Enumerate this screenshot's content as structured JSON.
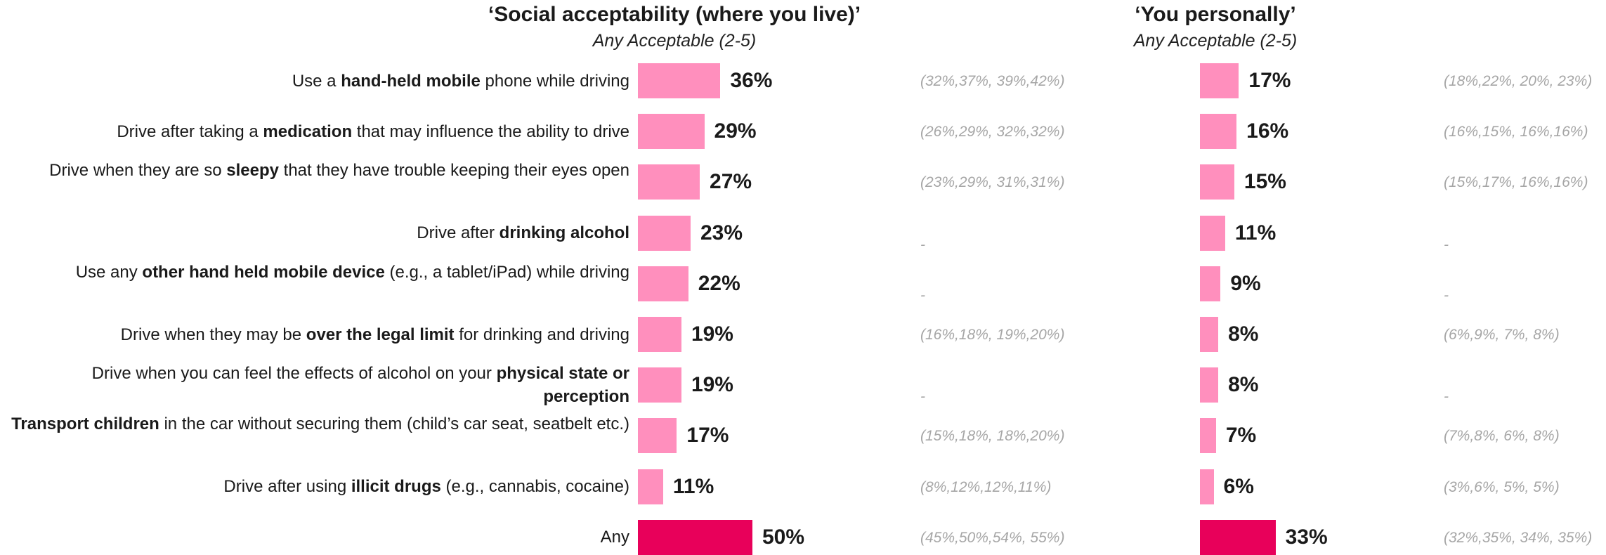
{
  "chart_data": [
    {
      "type": "bar",
      "orientation": "horizontal",
      "title": "‘Social acceptability (where you live)’",
      "subtitle": "Any Acceptable (2-5)",
      "categories": [
        "Use a hand-held mobile phone while driving",
        "Drive after taking a medication that may influence the ability to drive",
        "Drive when they are so sleepy that they have trouble keeping their eyes open",
        "Drive after drinking alcohol",
        "Use any other hand held mobile device (e.g., a tablet/iPad) while driving",
        "Drive when they may be over the legal limit for drinking and driving",
        "Drive when you can feel the effects of alcohol on your physical state or perception",
        "Transport children in the car without securing them (child’s car seat, seatbelt etc.)",
        "Drive after using illicit drugs (e.g., cannabis, cocaine)",
        "Any"
      ],
      "values": [
        36,
        29,
        27,
        23,
        22,
        19,
        19,
        17,
        11,
        50
      ],
      "value_labels": [
        "36%",
        "29%",
        "27%",
        "23%",
        "22%",
        "19%",
        "19%",
        "17%",
        "11%",
        "50%"
      ],
      "trend_labels": [
        "(32%,37%, 39%,42%)",
        "(26%,29%, 32%,32%)",
        "(23%,29%, 31%,31%)",
        "-",
        "-",
        "(16%,18%, 19%,20%)",
        "-",
        "(15%,18%, 18%,20%)",
        "(8%,12%,12%,11%)",
        "(45%,50%,54%, 55%)"
      ],
      "bar_color": "#ff8fbd",
      "highlight_color": "#e8005a"
    },
    {
      "type": "bar",
      "orientation": "horizontal",
      "title": "‘You personally’",
      "subtitle": "Any Acceptable (2-5)",
      "values": [
        17,
        16,
        15,
        11,
        9,
        8,
        8,
        7,
        6,
        33
      ],
      "value_labels": [
        "17%",
        "16%",
        "15%",
        "11%",
        "9%",
        "8%",
        "8%",
        "7%",
        "6%",
        "33%"
      ],
      "trend_labels": [
        "(18%,22%, 20%, 23%)",
        "(16%,15%, 16%,16%)",
        "(15%,17%, 16%,16%)",
        "-",
        "-",
        "(6%,9%, 7%, 8%)",
        "-",
        "(7%,8%, 6%, 8%)",
        "(3%,6%, 5%, 5%)",
        "(32%,35%, 34%, 35%)"
      ],
      "bar_color": "#ff8fbd",
      "highlight_color": "#e8005a"
    }
  ],
  "row_labels_html": [
    "Use a <b>hand-held mobile</b> phone while driving",
    "Drive after taking a <b>medication</b> that may influence the ability to drive",
    "Drive when they are so <b>sleepy</b> that they have trouble keeping their eyes open",
    "Drive after <b>drinking alcohol</b>",
    "Use any <b>other hand held mobile device</b> (e.g., a tablet/iPad) while driving",
    "Drive when they may be <b>over the legal limit</b> for drinking and driving",
    "Drive when you can feel the effects of alcohol on your <b>physical state or perception</b>",
    "<b>Transport children</b> in the car without securing them (child’s car seat, seatbelt etc.)",
    "Drive after using <b>illicit drugs</b> (e.g., cannabis, cocaine)",
    "Any"
  ]
}
